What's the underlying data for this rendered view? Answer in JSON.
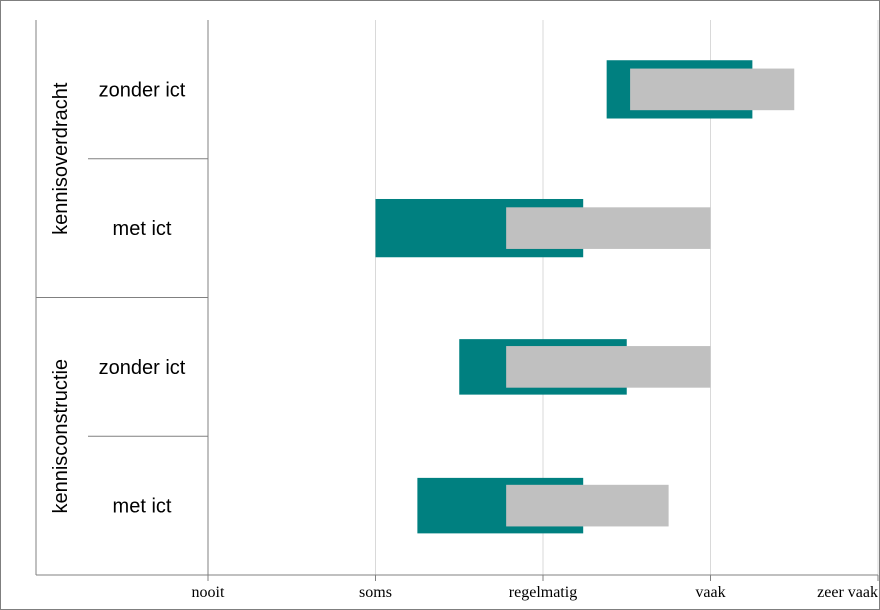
{
  "chart_data": {
    "type": "bar",
    "title": "",
    "xlabel": "",
    "ylabel": "",
    "x_ticks": [
      "nooit",
      "soms",
      "regelmatig",
      "vaak",
      "zeer vaak"
    ],
    "xlim": [
      0,
      4
    ],
    "grid": true,
    "groups": [
      {
        "label": "kennisoverdracht",
        "categories": [
          "zonder ict",
          "met ict"
        ]
      },
      {
        "label": "kennisconstructie",
        "categories": [
          "zonder ict",
          "met ict"
        ]
      }
    ],
    "categories": [
      "zonder ict",
      "met ict",
      "zonder ict",
      "met ict"
    ],
    "series": [
      {
        "color": "#008080",
        "ranges": [
          [
            2.38,
            3.25
          ],
          [
            1.0,
            2.24
          ],
          [
            1.5,
            2.5
          ],
          [
            1.25,
            2.24
          ]
        ]
      },
      {
        "color": "#c0c0c0",
        "ranges": [
          [
            2.52,
            3.5
          ],
          [
            1.78,
            3.0
          ],
          [
            1.78,
            3.0
          ],
          [
            1.78,
            2.75
          ]
        ]
      }
    ]
  }
}
